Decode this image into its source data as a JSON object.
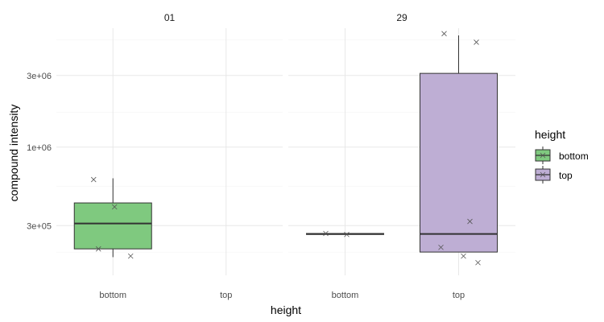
{
  "chart_data": {
    "type": "boxplot",
    "title": "",
    "xlabel": "height",
    "ylabel": "compound intensity",
    "y_scale": "log10",
    "y_range": [
      140000,
      6200000
    ],
    "y_ticks": [
      {
        "value": 300000,
        "label": "3e+05"
      },
      {
        "value": 1000000,
        "label": "1e+06"
      },
      {
        "value": 3000000,
        "label": "3e+06"
      }
    ],
    "y_minor_grid": [
      200000,
      550000,
      1700000,
      5200000
    ],
    "categories": [
      "bottom",
      "top"
    ],
    "grid": true,
    "legend": {
      "title": "height",
      "position": "right",
      "entries": [
        {
          "label": "bottom",
          "color": "#7fc97f"
        },
        {
          "label": "top",
          "color": "#beaed4"
        }
      ]
    },
    "facets": [
      {
        "label": "01",
        "boxes": [
          {
            "category": "bottom",
            "color": "#7fc97f",
            "min": 185000,
            "q1": 210000,
            "median": 310000,
            "q3": 425000,
            "max": 620000
          },
          {
            "category": "top",
            "color": "#beaed4",
            "min": null,
            "q1": null,
            "median": null,
            "q3": null,
            "max": null
          }
        ],
        "points": [
          {
            "category": "bottom",
            "value": 608000
          },
          {
            "category": "bottom",
            "value": 400000
          },
          {
            "category": "bottom",
            "value": 210000
          },
          {
            "category": "bottom",
            "value": 188000
          }
        ]
      },
      {
        "label": "29",
        "boxes": [
          {
            "category": "bottom",
            "color": "#7fc97f",
            "min": 262000,
            "q1": 262000,
            "median": 264000,
            "q3": 266000,
            "max": 266000
          },
          {
            "category": "top",
            "color": "#beaed4",
            "min": 200000,
            "q1": 200000,
            "median": 264000,
            "q3": 3100000,
            "max": 5550000
          }
        ],
        "points": [
          {
            "category": "bottom",
            "value": 266000
          },
          {
            "category": "bottom",
            "value": 262000
          },
          {
            "category": "top",
            "value": 5700000
          },
          {
            "category": "top",
            "value": 5000000
          },
          {
            "category": "top",
            "value": 320000
          },
          {
            "category": "top",
            "value": 215000
          },
          {
            "category": "top",
            "value": 188000
          },
          {
            "category": "top",
            "value": 170000
          }
        ]
      }
    ]
  }
}
